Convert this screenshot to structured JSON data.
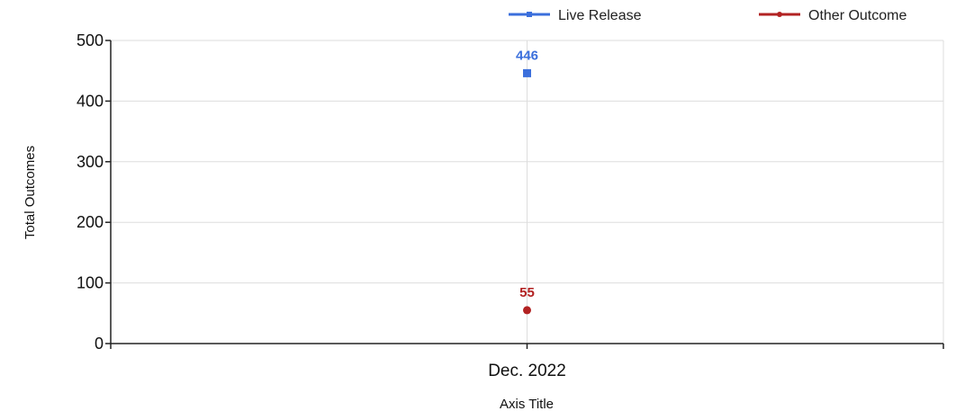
{
  "chart_data": {
    "type": "line",
    "categories": [
      "Dec. 2022"
    ],
    "series": [
      {
        "name": "Live Release",
        "values": [
          446
        ],
        "color": "#3b6fdc",
        "marker": "square"
      },
      {
        "name": "Other Outcome",
        "values": [
          55
        ],
        "color": "#b22222",
        "marker": "circle"
      }
    ],
    "xlabel": "Axis Title",
    "ylabel": "Total Outcomes",
    "ylim": [
      0,
      500
    ],
    "yticks": [
      0,
      100,
      200,
      300,
      400,
      500
    ],
    "grid": true,
    "legend_position": "top-right",
    "data_labels": true
  }
}
